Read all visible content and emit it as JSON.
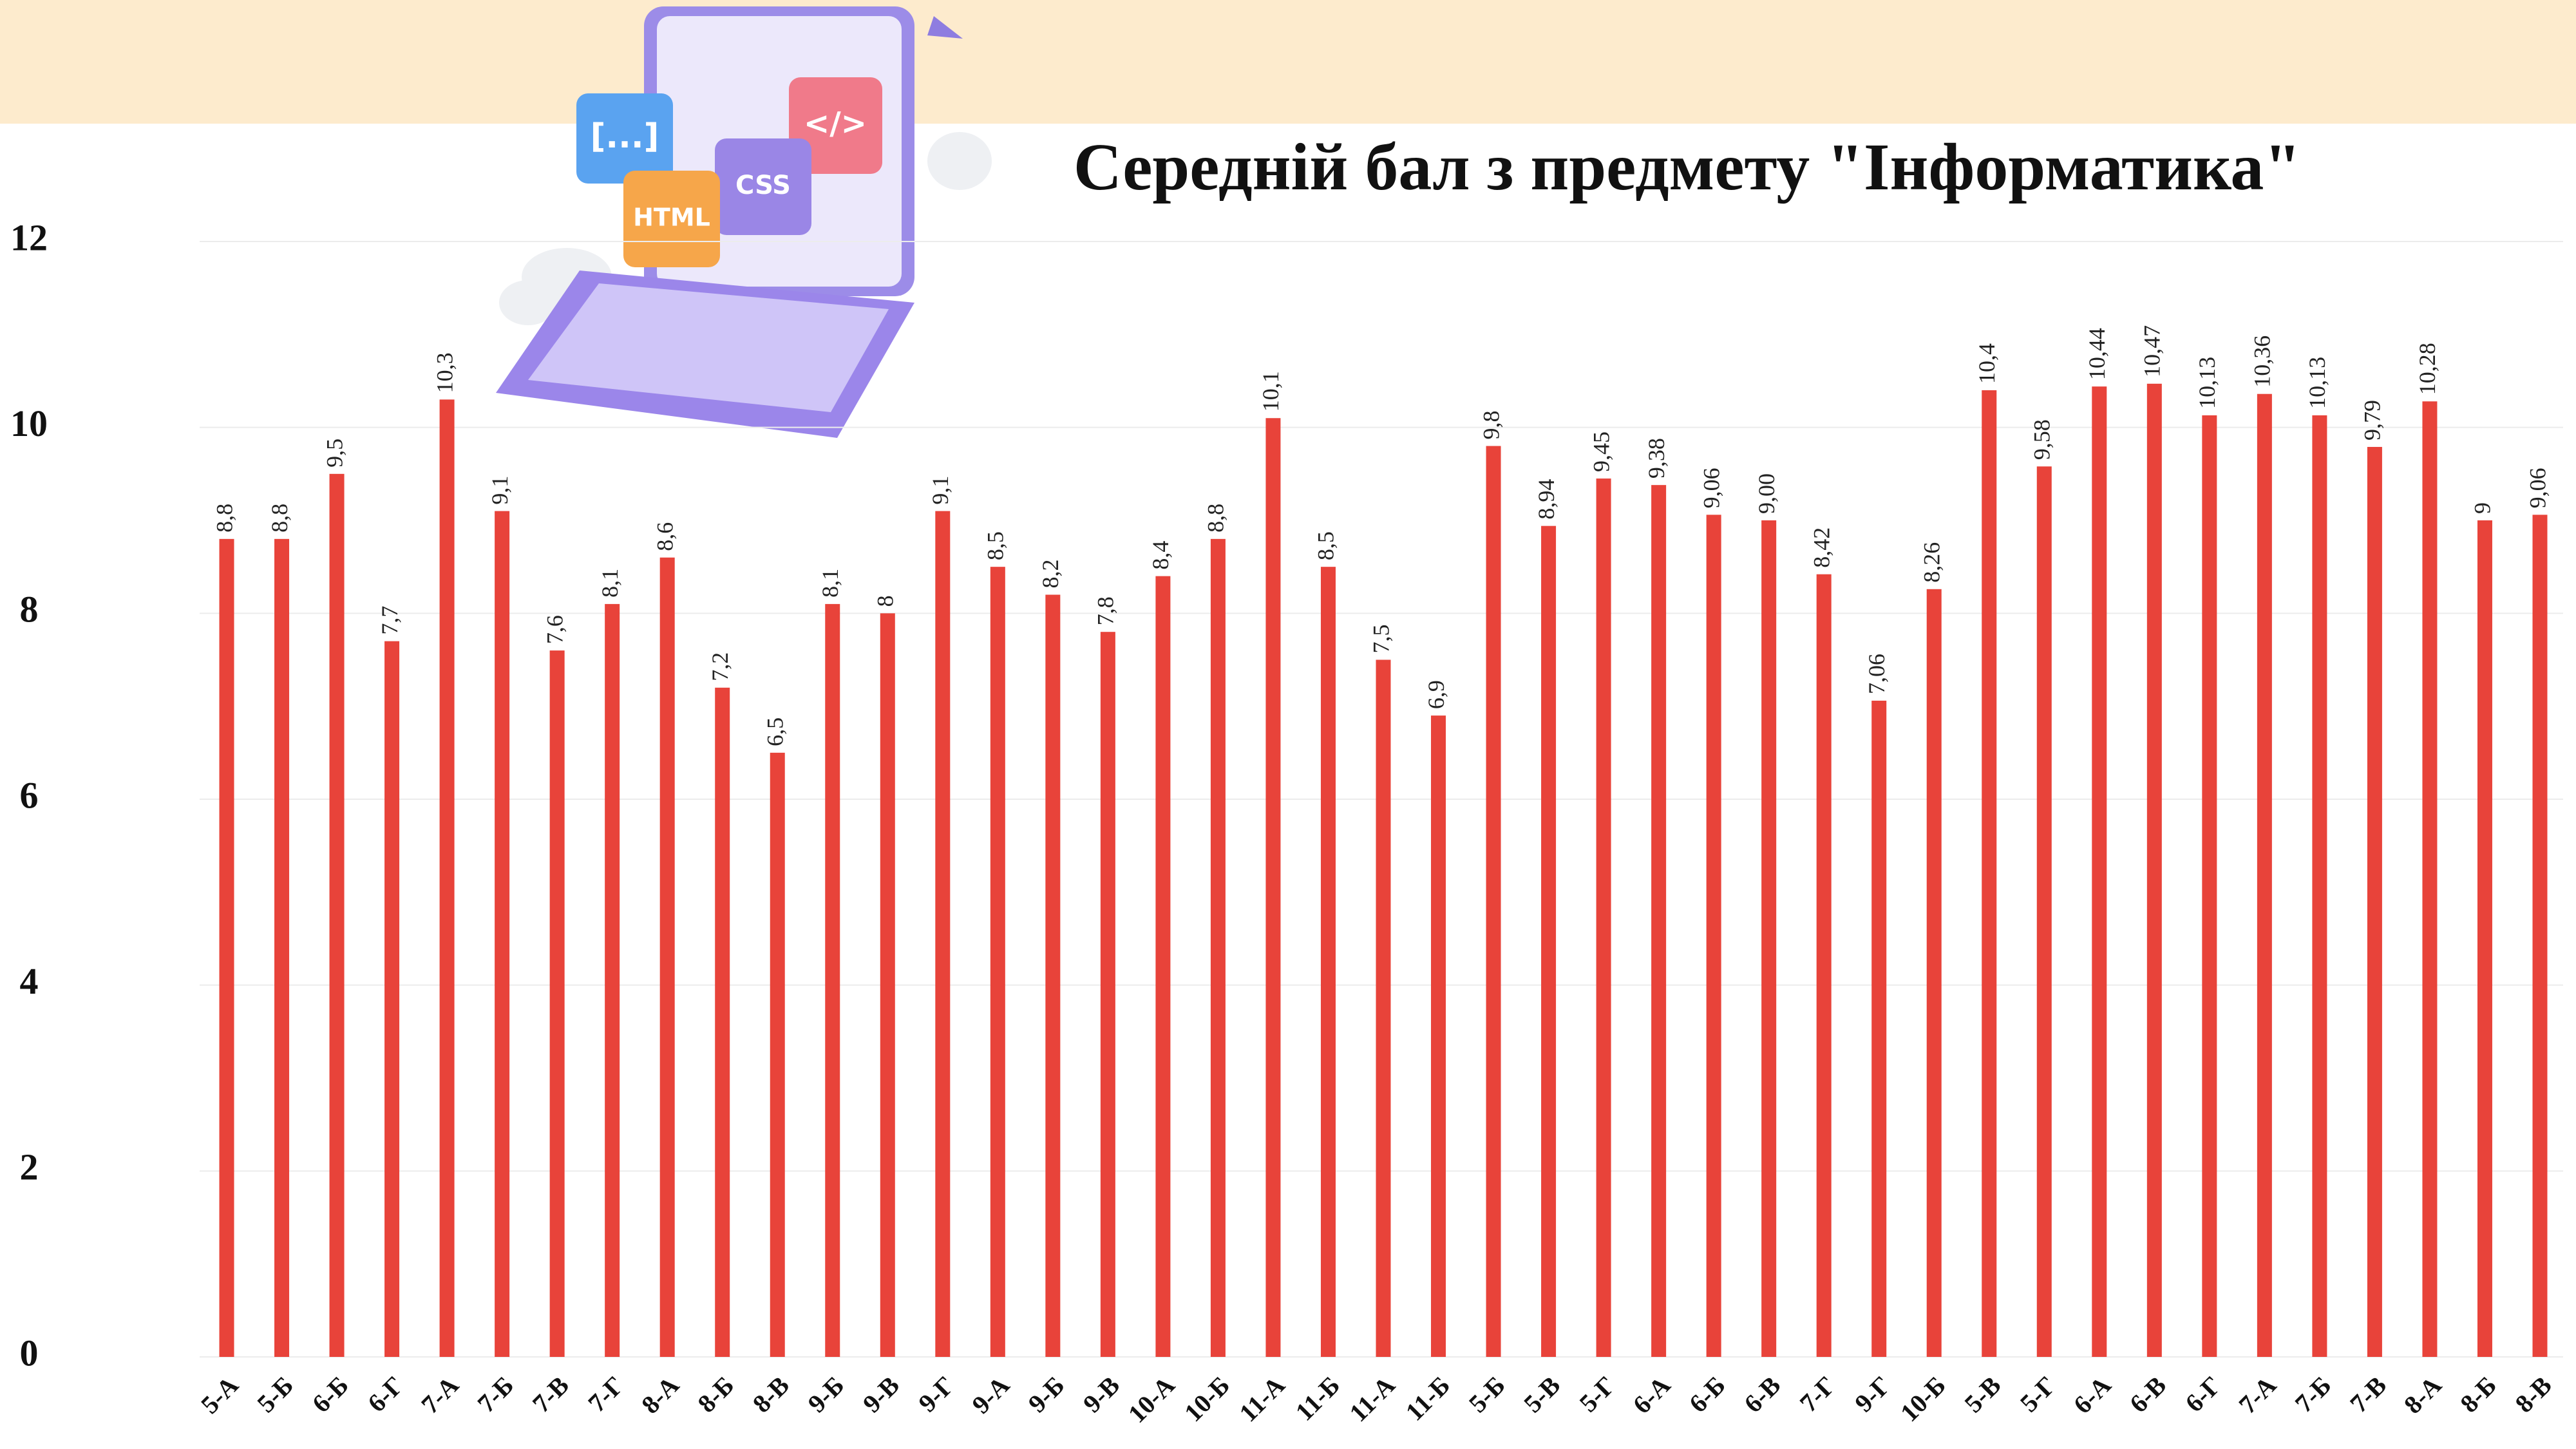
{
  "chart_data": {
    "type": "bar",
    "title": "Середній бал з предмету \"Інформатика\"",
    "illustration_tiles": [
      "[...]",
      "</>",
      "CSS",
      "HTML"
    ],
    "categories": [
      "5-А",
      "5-Б",
      "6-Б",
      "6-Г",
      "7-А",
      "7-Б",
      "7-В",
      "7-Г",
      "8-А",
      "8-Б",
      "8-В",
      "9-Б",
      "9-В",
      "9-Г",
      "9-А",
      "9-Б",
      "9-В",
      "10-А",
      "10-Б",
      "11-А",
      "11-Б",
      "11-А",
      "11-Б",
      "5-Б",
      "5-В",
      "5-Г",
      "6-А",
      "6-Б",
      "6-В",
      "7-Г",
      "9-Г",
      "10-Б",
      "5-В",
      "5-Г",
      "6-А",
      "6-В",
      "6-Г",
      "7-А",
      "7-Б",
      "7-В",
      "8-А",
      "8-Б",
      "8-В"
    ],
    "values": [
      8.8,
      8.8,
      9.5,
      7.7,
      10.3,
      9.1,
      7.6,
      8.1,
      8.6,
      7.2,
      6.5,
      8.1,
      8,
      9.1,
      8.5,
      8.2,
      7.8,
      8.4,
      8.8,
      10.1,
      8.5,
      7.5,
      6.9,
      9.8,
      8.94,
      9.45,
      9.38,
      9.06,
      9.0,
      8.42,
      7.06,
      8.26,
      10.4,
      9.58,
      10.44,
      10.47,
      10.13,
      10.36,
      10.13,
      9.79,
      10.28,
      9,
      9.06
    ],
    "value_labels": [
      "8,8",
      "8,8",
      "9,5",
      "7,7",
      "10,3",
      "9,1",
      "7,6",
      "8,1",
      "8,6",
      "7,2",
      "6,5",
      "8,1",
      "8",
      "9,1",
      "8,5",
      "8,2",
      "7,8",
      "8,4",
      "8,8",
      "10,1",
      "8,5",
      "7,5",
      "6,9",
      "9,8",
      "8,94",
      "9,45",
      "9,38",
      "9,06",
      "9,00",
      "8,42",
      "7,06",
      "8,26",
      "10,4",
      "9,58",
      "10,44",
      "10,47",
      "10,13",
      "10,36",
      "10,13",
      "9,79",
      "10,28",
      "9",
      "9,06"
    ],
    "color": "#e8433a",
    "ylim": [
      0,
      12
    ],
    "yticks": [
      0,
      2,
      4,
      6,
      8,
      10,
      12
    ],
    "grid": true
  }
}
